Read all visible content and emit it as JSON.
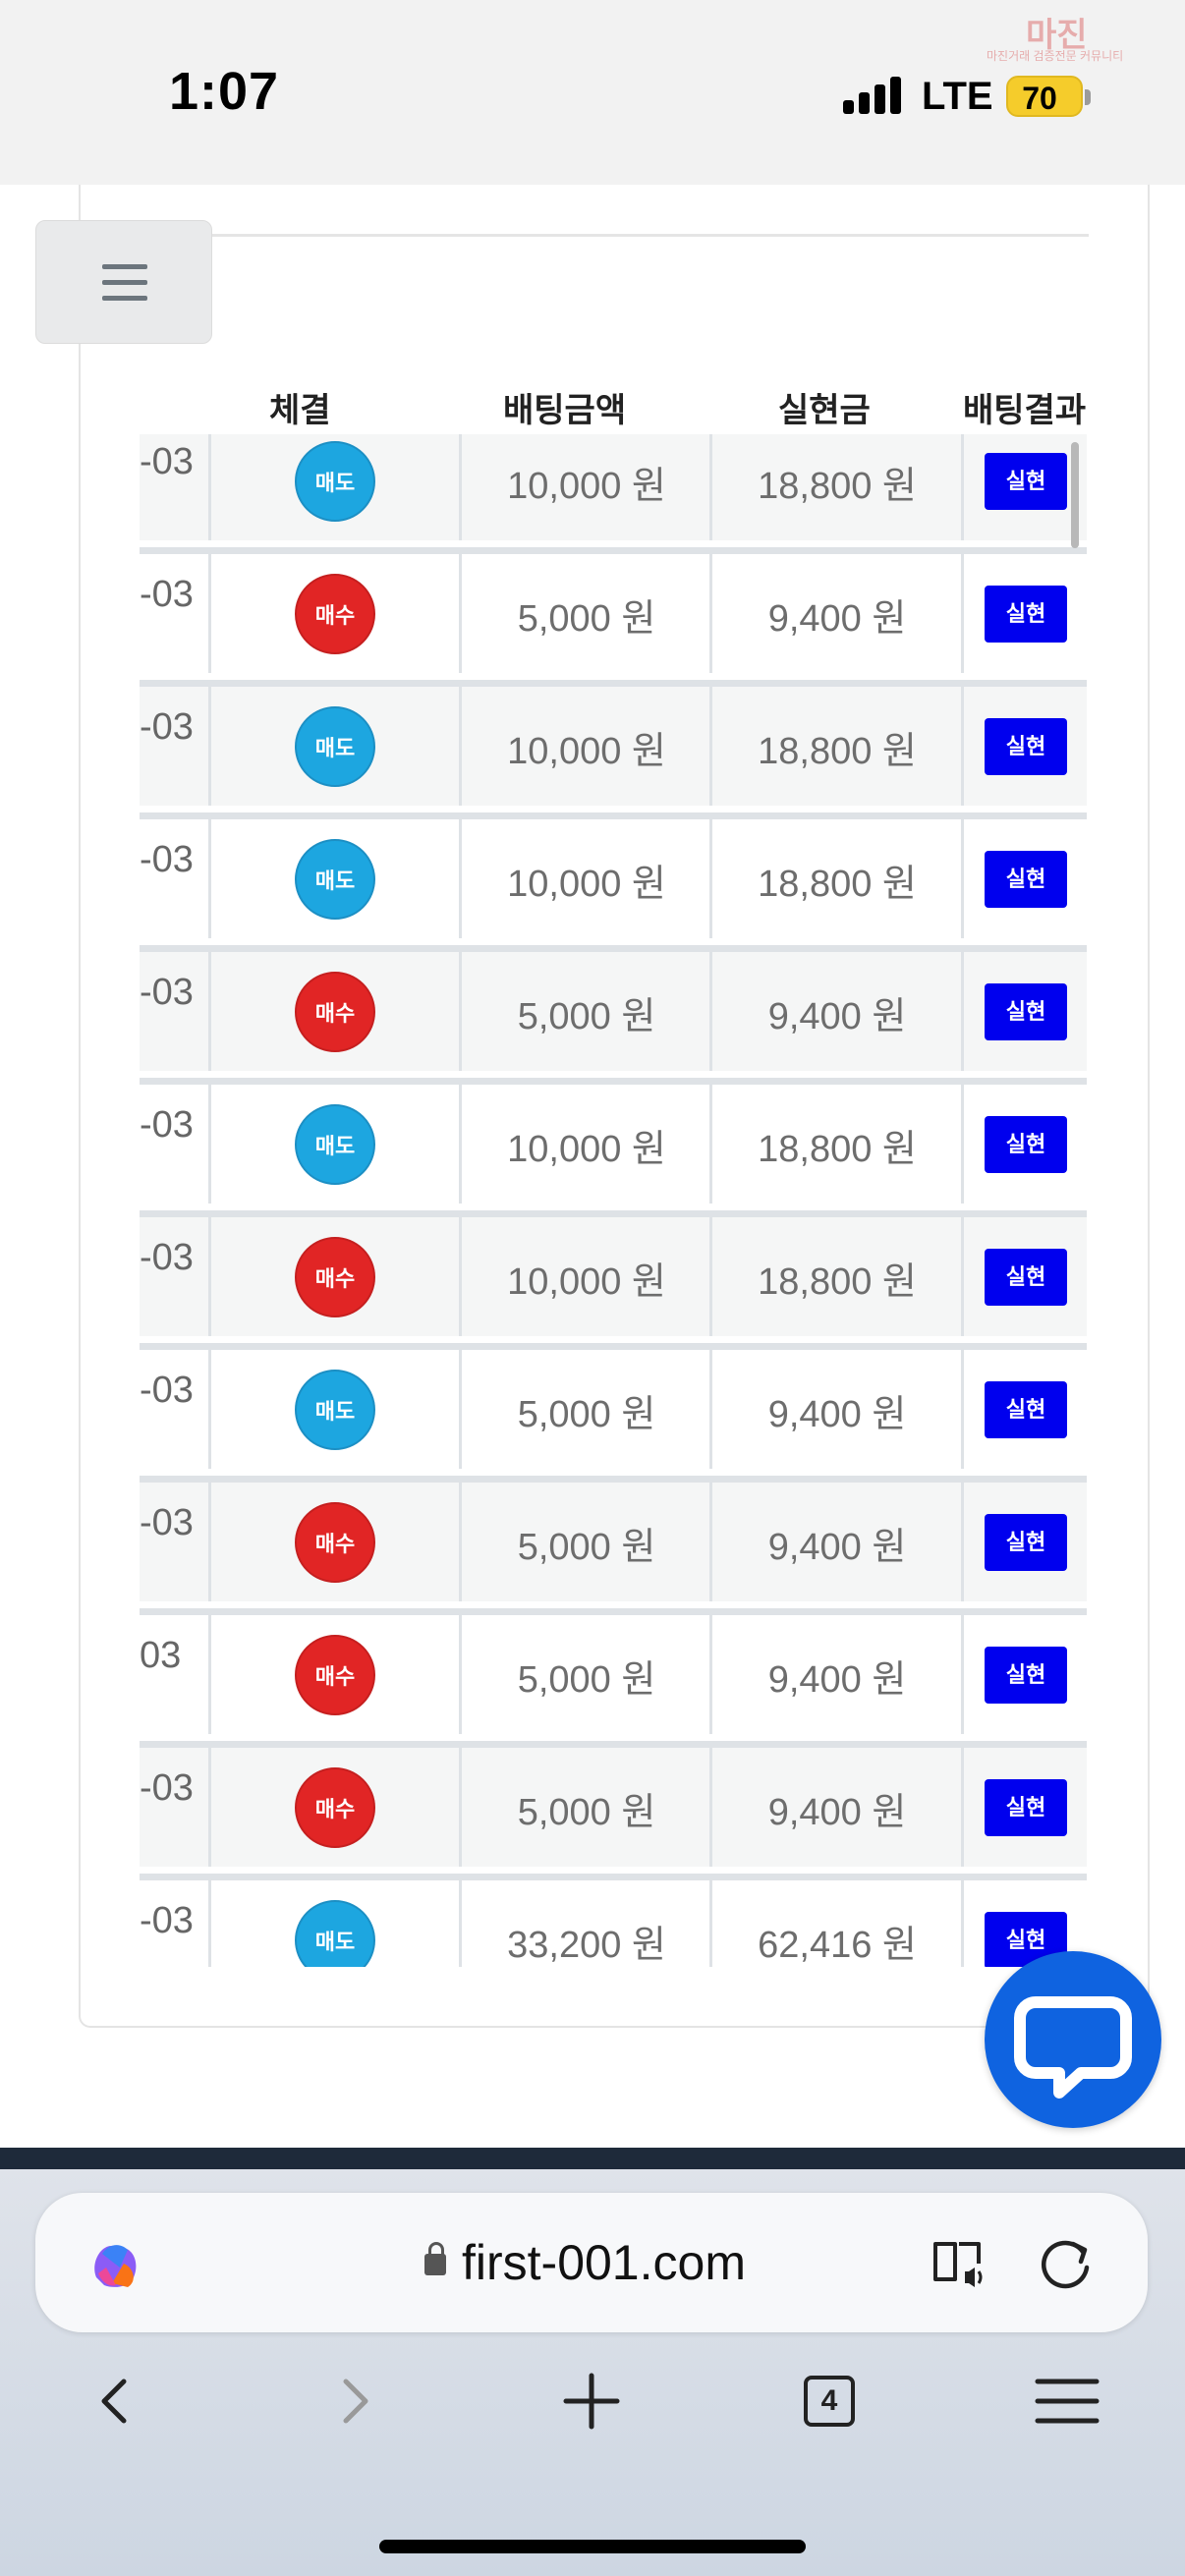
{
  "status_bar": {
    "time": "1:07",
    "network": "LTE",
    "battery": "70",
    "watermark_main": "마진",
    "watermark_sub": "마진거래 검증전문 커뮤니티"
  },
  "table": {
    "headers": [
      "체결",
      "배팅금액",
      "실현금",
      "배팅결과"
    ],
    "rows": [
      {
        "date": "-03",
        "side": "매도",
        "amount": "10,000 원",
        "realized": "18,800 원",
        "result": "실현"
      },
      {
        "date": "-03",
        "side": "매수",
        "amount": "5,000 원",
        "realized": "9,400 원",
        "result": "실현"
      },
      {
        "date": "-03",
        "side": "매도",
        "amount": "10,000 원",
        "realized": "18,800 원",
        "result": "실현"
      },
      {
        "date": "-03",
        "side": "매도",
        "amount": "10,000 원",
        "realized": "18,800 원",
        "result": "실현"
      },
      {
        "date": "-03",
        "side": "매수",
        "amount": "5,000 원",
        "realized": "9,400 원",
        "result": "실현"
      },
      {
        "date": "-03",
        "side": "매도",
        "amount": "10,000 원",
        "realized": "18,800 원",
        "result": "실현"
      },
      {
        "date": "-03",
        "side": "매수",
        "amount": "10,000 원",
        "realized": "18,800 원",
        "result": "실현"
      },
      {
        "date": "-03",
        "side": "매도",
        "amount": "5,000 원",
        "realized": "9,400 원",
        "result": "실현"
      },
      {
        "date": "-03",
        "side": "매수",
        "amount": "5,000 원",
        "realized": "9,400 원",
        "result": "실현"
      },
      {
        "date": "03",
        "side": "매수",
        "amount": "5,000 원",
        "realized": "9,400 원",
        "result": "실현"
      },
      {
        "date": "-03",
        "side": "매수",
        "amount": "5,000 원",
        "realized": "9,400 원",
        "result": "실현"
      },
      {
        "date": "-03",
        "side": "매도",
        "amount": "33,200 원",
        "realized": "62,416 원",
        "result": "실현"
      }
    ]
  },
  "browser": {
    "url": "first-001.com",
    "tab_count": "4"
  },
  "colors": {
    "sell": "#1da6e0",
    "buy": "#e12525",
    "result": "#0000ee",
    "chat": "#0f63e0"
  },
  "icons": {
    "menu": "hamburger-icon",
    "chat": "chat-bubble-icon",
    "lock": "lock-icon",
    "copilot": "copilot-icon",
    "reader": "reader-mode-icon",
    "reload": "reload-icon"
  }
}
